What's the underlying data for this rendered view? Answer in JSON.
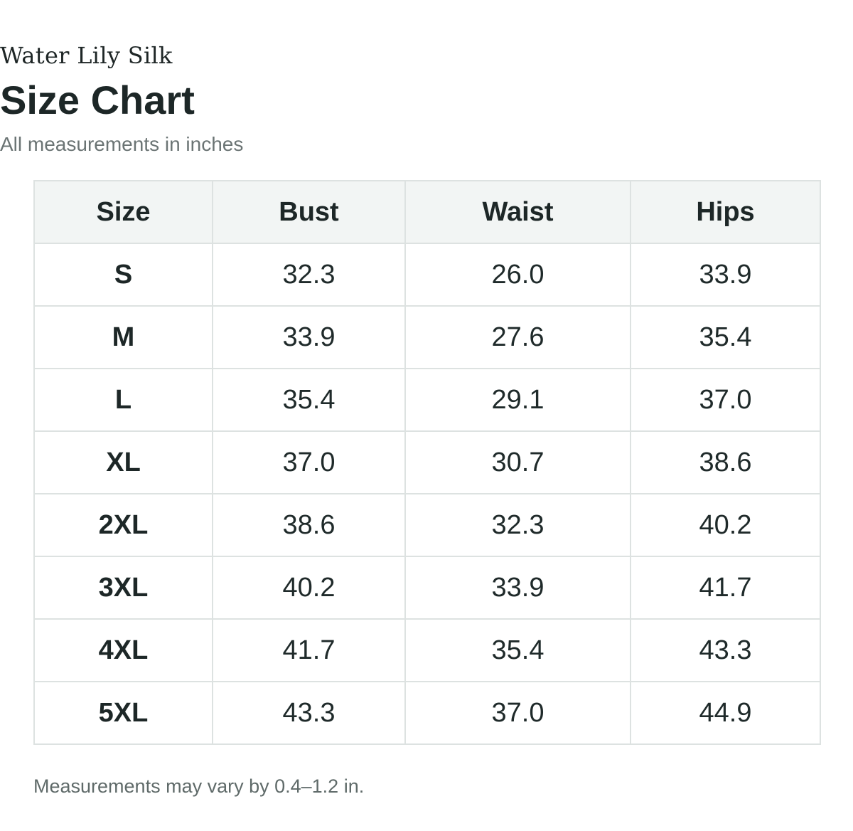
{
  "brand": "Water Lily Silk",
  "title": "Size Chart",
  "subtitle": "All measurements in inches",
  "columns": [
    "Size",
    "Bust",
    "Waist",
    "Hips"
  ],
  "rows": [
    [
      "S",
      "32.3",
      "26.0",
      "33.9"
    ],
    [
      "M",
      "33.9",
      "27.6",
      "35.4"
    ],
    [
      "L",
      "35.4",
      "29.1",
      "37.0"
    ],
    [
      "XL",
      "37.0",
      "30.7",
      "38.6"
    ],
    [
      "2XL",
      "38.6",
      "32.3",
      "40.2"
    ],
    [
      "3XL",
      "40.2",
      "33.9",
      "41.7"
    ],
    [
      "4XL",
      "41.7",
      "35.4",
      "43.3"
    ],
    [
      "5XL",
      "43.3",
      "37.0",
      "44.9"
    ]
  ],
  "footnote": "Measurements may vary by 0.4–1.2 in.",
  "colors": {
    "header_bg": "#f2f5f4",
    "border": "#dde2e1",
    "text": "#1f2a2a",
    "muted": "#6b7474"
  }
}
